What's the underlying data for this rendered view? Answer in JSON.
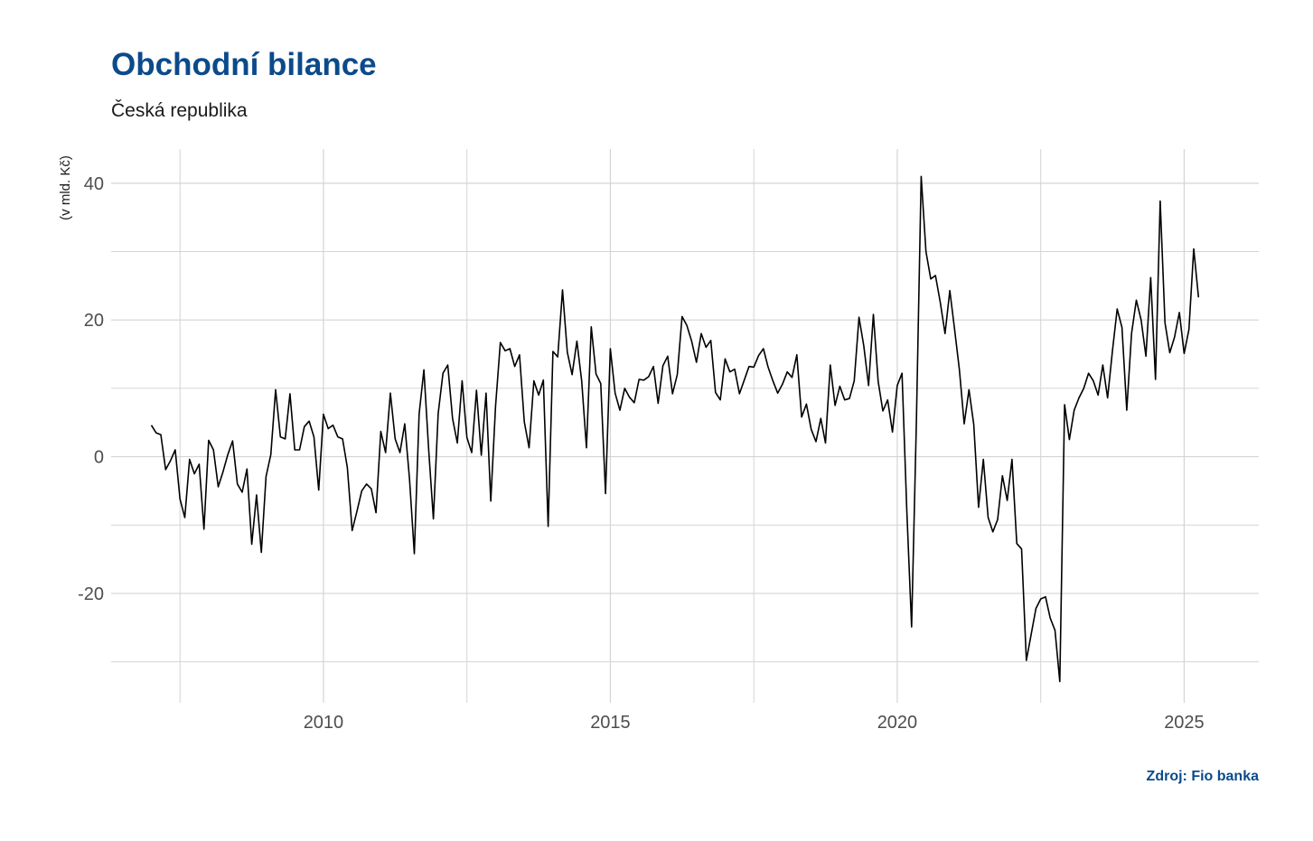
{
  "header": {
    "title": "Obchodní bilance",
    "subtitle": "Česká republika"
  },
  "footer": {
    "source": "Zdroj: Fio banka"
  },
  "colors": {
    "title": "#0b4a8b",
    "line": "#000000",
    "grid": "#d4d4d4"
  },
  "chart_data": {
    "type": "line",
    "title": "Obchodní bilance",
    "subtitle": "Česká republika",
    "xlabel": "",
    "ylabel": "(v mld. Kč)",
    "xlim": [
      2006.3,
      2026.3
    ],
    "ylim": [
      -36,
      45
    ],
    "x_ticks": [
      2010,
      2015,
      2020,
      2025
    ],
    "y_ticks": [
      -20,
      0,
      20,
      40
    ],
    "grid": true,
    "series": [
      {
        "start": 2007.0,
        "step": 0.08333,
        "values": [
          4.6,
          3.5,
          3.2,
          -1.9,
          -0.6,
          1.0,
          -6.2,
          -8.9,
          -0.4,
          -2.5,
          -1.1,
          -10.6,
          2.4,
          1.0,
          -4.4,
          -2.2,
          0.3,
          2.3,
          -4.0,
          -5.2,
          -1.8,
          -12.8,
          -5.6,
          -14.0,
          -2.9,
          0.3,
          9.8,
          2.9,
          2.6,
          9.2,
          1.0,
          1.0,
          4.4,
          5.2,
          2.9,
          -4.9,
          6.2,
          4.1,
          4.6,
          2.9,
          2.6,
          -1.6,
          -10.8,
          -8.0,
          -5.0,
          -4.0,
          -4.7,
          -8.2,
          3.7,
          0.6,
          9.3,
          2.6,
          0.6,
          4.8,
          -3.3,
          -14.2,
          6.2,
          12.7,
          1.0,
          -9.1,
          6.3,
          12.2,
          13.4,
          5.6,
          2.0,
          11.1,
          2.8,
          0.6,
          9.7,
          0.2,
          9.3,
          -6.5,
          7.4,
          16.7,
          15.5,
          15.8,
          13.2,
          14.9,
          5.1,
          1.3,
          11.1,
          9.0,
          11.2,
          -10.2,
          15.4,
          14.6,
          24.4,
          15.3,
          12.0,
          16.9,
          11.1,
          1.3,
          19.0,
          12.1,
          10.7,
          -5.4,
          15.8,
          9.3,
          6.8,
          10.0,
          8.7,
          7.9,
          11.3,
          11.2,
          11.7,
          13.2,
          7.8,
          13.3,
          14.7,
          9.2,
          12.0,
          20.5,
          19.2,
          16.9,
          13.8,
          18.0,
          16.0,
          17.0,
          9.4,
          8.3,
          14.3,
          12.4,
          12.8,
          9.2,
          11.2,
          13.2,
          13.1,
          14.8,
          15.8,
          13.1,
          11.1,
          9.3,
          10.6,
          12.4,
          11.6,
          14.9,
          5.8,
          7.7,
          4.0,
          2.2,
          5.6,
          2.0,
          13.4,
          7.5,
          10.3,
          8.3,
          8.5,
          11.1,
          20.4,
          16.2,
          10.4,
          20.8,
          11.0,
          6.7,
          8.3,
          3.6,
          10.4,
          12.2,
          -7.9,
          -24.9,
          5.1,
          41.0,
          30.0,
          26.0,
          26.5,
          22.6,
          18.0,
          24.3,
          18.6,
          12.7,
          4.8,
          9.8,
          4.7,
          -7.4,
          -0.4,
          -8.9,
          -11.0,
          -9.2,
          -2.8,
          -6.4,
          -0.4,
          -12.7,
          -13.5,
          -29.8,
          -26.0,
          -22.2,
          -20.8,
          -20.5,
          -23.6,
          -25.4,
          -32.9,
          7.6,
          2.5,
          6.8,
          8.6,
          10.0,
          12.2,
          11.1,
          9.0,
          13.4,
          8.6,
          15.4,
          21.6,
          18.9,
          6.8,
          18.0,
          22.9,
          20.0,
          14.7,
          26.2,
          11.3,
          37.4,
          19.6,
          15.2,
          17.5,
          21.1,
          15.1,
          18.6,
          30.4,
          23.3
        ]
      }
    ]
  }
}
